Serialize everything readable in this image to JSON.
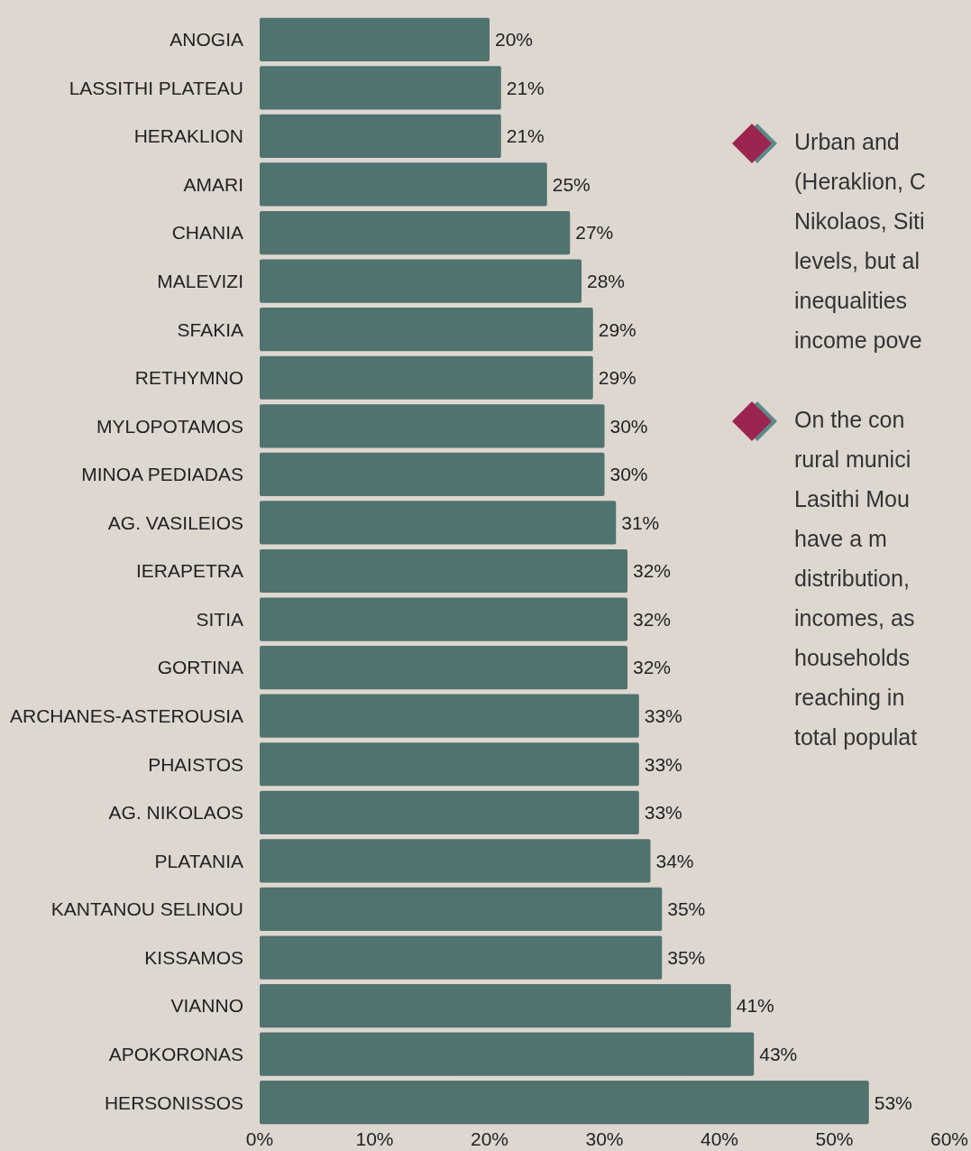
{
  "chart_data": {
    "type": "bar",
    "orientation": "horizontal",
    "categories": [
      "ANOGIA",
      "LASSITHI PLATEAU",
      "HERAKLION",
      "AMARI",
      "CHANIA",
      "MALEVIZI",
      "SFAKIA",
      "RETHYMNO",
      "MYLOPOTAMOS",
      "MINOA PEDIADAS",
      "AG. VASILEIOS",
      "IERAPETRA",
      "SITIA",
      "GORTINA",
      "ARCHANES-ASTEROUSIA",
      "PHAISTOS",
      "AG. NIKOLAOS",
      "PLATANIA",
      "KANTANOU SELINOU",
      "KISSAMOS",
      "VIANNO",
      "APOKORONAS",
      "HERSONISSOS"
    ],
    "values": [
      20,
      21,
      21,
      25,
      27,
      28,
      29,
      29,
      30,
      30,
      31,
      32,
      32,
      32,
      33,
      33,
      33,
      34,
      35,
      35,
      41,
      43,
      53
    ],
    "value_labels": [
      "20%",
      "21%",
      "21%",
      "25%",
      "27%",
      "28%",
      "29%",
      "29%",
      "30%",
      "30%",
      "31%",
      "32%",
      "32%",
      "32%",
      "33%",
      "33%",
      "33%",
      "34%",
      "35%",
      "35%",
      "41%",
      "43%",
      "53%"
    ],
    "color": "#50736f",
    "xlim": [
      0,
      60
    ],
    "xticks": [
      {
        "value": 0,
        "label": "0%"
      },
      {
        "value": 10,
        "label": "10%"
      },
      {
        "value": 20,
        "label": "20%"
      },
      {
        "value": 30,
        "label": "30%"
      },
      {
        "value": 40,
        "label": "40%"
      },
      {
        "value": 50,
        "label": "50%"
      },
      {
        "value": 60,
        "label": "60%"
      }
    ],
    "annotations": [
      "Urban and\n(Heraklion, C\nNikolaos, Siti\nlevels, but al\ninequalities\nincome pove",
      "On the con\nrural munici\nLasithi Mou\nhave a m\ndistribution,\nincomes, as\nhouseholds\nreaching in\ntotal populat"
    ]
  }
}
